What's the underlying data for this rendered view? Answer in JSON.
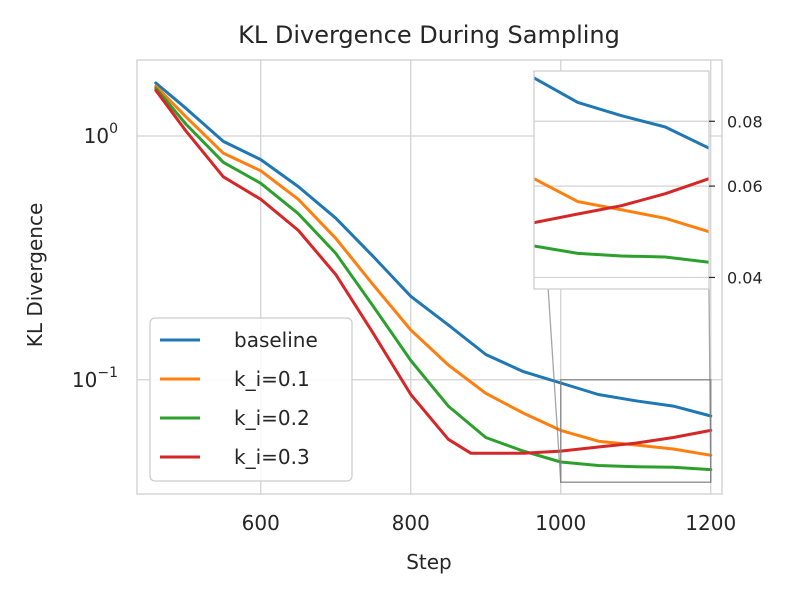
{
  "chart_data": {
    "type": "line",
    "title": "KL Divergence During Sampling",
    "xlabel": "Step",
    "ylabel": "KL Divergence",
    "xlim": [
      435,
      1215
    ],
    "ylim": [
      0.034,
      2.05
    ],
    "y_scale": "log",
    "grid": true,
    "legend_position": "lower-left",
    "x_ticks": [
      600,
      800,
      1000,
      1200
    ],
    "x_tick_labels": [
      "600",
      "800",
      "1000",
      "1200"
    ],
    "y_ticks": [
      1,
      0.1
    ],
    "y_tick_labels": [
      {
        "base": "10",
        "exp": "0"
      },
      {
        "base": "10",
        "exp": "−1"
      }
    ],
    "series": [
      {
        "name": "baseline",
        "color": "#1f77b4",
        "points": [
          [
            460,
            1.65
          ],
          [
            500,
            1.3
          ],
          [
            550,
            0.95
          ],
          [
            600,
            0.8
          ],
          [
            650,
            0.62
          ],
          [
            700,
            0.46
          ],
          [
            750,
            0.32
          ],
          [
            800,
            0.22
          ],
          [
            850,
            0.168
          ],
          [
            900,
            0.127
          ],
          [
            950,
            0.108
          ],
          [
            1000,
            0.097
          ],
          [
            1050,
            0.087
          ],
          [
            1100,
            0.082
          ],
          [
            1150,
            0.078
          ],
          [
            1200,
            0.071
          ]
        ]
      },
      {
        "name": "k_i=0.1",
        "color": "#ff7f0e",
        "points": [
          [
            460,
            1.6
          ],
          [
            500,
            1.2
          ],
          [
            550,
            0.85
          ],
          [
            600,
            0.72
          ],
          [
            650,
            0.55
          ],
          [
            700,
            0.38
          ],
          [
            750,
            0.245
          ],
          [
            800,
            0.16
          ],
          [
            850,
            0.115
          ],
          [
            900,
            0.088
          ],
          [
            950,
            0.073
          ],
          [
            1000,
            0.062
          ],
          [
            1050,
            0.056
          ],
          [
            1100,
            0.054
          ],
          [
            1150,
            0.052
          ],
          [
            1200,
            0.049
          ]
        ]
      },
      {
        "name": "k_i=0.2",
        "color": "#2ca02c",
        "points": [
          [
            460,
            1.57
          ],
          [
            500,
            1.12
          ],
          [
            550,
            0.78
          ],
          [
            600,
            0.64
          ],
          [
            650,
            0.48
          ],
          [
            700,
            0.33
          ],
          [
            750,
            0.2
          ],
          [
            800,
            0.12
          ],
          [
            850,
            0.078
          ],
          [
            900,
            0.058
          ],
          [
            950,
            0.051
          ],
          [
            1000,
            0.046
          ],
          [
            1050,
            0.0445
          ],
          [
            1100,
            0.044
          ],
          [
            1150,
            0.0438
          ],
          [
            1200,
            0.0428
          ]
        ]
      },
      {
        "name": "k_i=0.3",
        "color": "#d62728",
        "points": [
          [
            460,
            1.54
          ],
          [
            500,
            1.05
          ],
          [
            550,
            0.68
          ],
          [
            600,
            0.55
          ],
          [
            650,
            0.41
          ],
          [
            700,
            0.27
          ],
          [
            750,
            0.155
          ],
          [
            800,
            0.087
          ],
          [
            850,
            0.057
          ],
          [
            880,
            0.05
          ],
          [
            900,
            0.05
          ],
          [
            950,
            0.05
          ],
          [
            1000,
            0.051
          ],
          [
            1050,
            0.053
          ],
          [
            1100,
            0.055
          ],
          [
            1150,
            0.058
          ],
          [
            1200,
            0.062
          ]
        ]
      }
    ],
    "inset": {
      "xlim": [
        1000,
        1200
      ],
      "ylim": [
        0.038,
        0.1
      ],
      "y_scale": "log",
      "y_ticks": [
        0.08,
        0.06,
        0.04
      ],
      "y_tick_labels": [
        "0.08",
        "0.06",
        "0.04"
      ]
    }
  }
}
